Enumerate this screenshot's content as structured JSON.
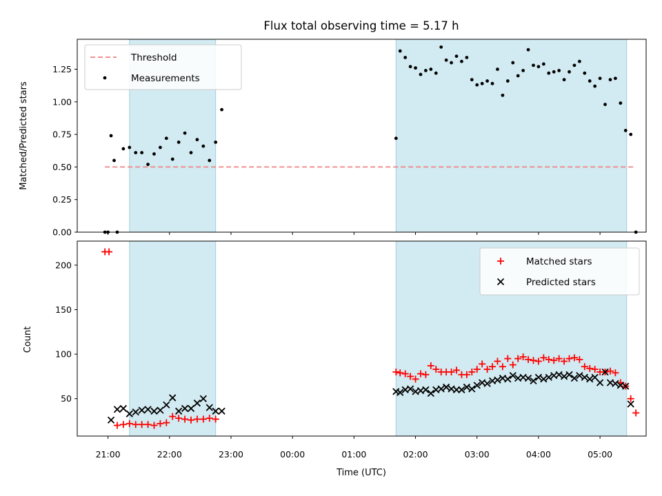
{
  "chart_data": [
    {
      "type": "scatter",
      "panel": "top",
      "title": "Flux total observing time = 5.17 h",
      "xlabel": "",
      "ylabel": "Matched/Predicted stars",
      "ylim": [
        0,
        1.48
      ],
      "xlim": [
        "20:30",
        "05:45"
      ],
      "yticks": [
        0.0,
        0.25,
        0.5,
        0.75,
        1.0,
        1.25
      ],
      "ytick_labels": [
        "0.00",
        "0.25",
        "0.50",
        "0.75",
        "1.00",
        "1.25"
      ],
      "shaded_intervals": [
        [
          "21:21",
          "22:45"
        ],
        [
          "01:41",
          "05:26"
        ]
      ],
      "legend": "top-left",
      "series": [
        {
          "name": "Threshold",
          "style": "dashed-line",
          "color": "#f08080",
          "x": [
            "20:57",
            "05:33"
          ],
          "y": [
            0.5,
            0.5
          ]
        },
        {
          "name": "Measurements",
          "style": "dot",
          "color": "#000000",
          "x": [
            "20:57",
            "21:00",
            "21:03",
            "21:06",
            "21:09",
            "21:15",
            "21:21",
            "21:27",
            "21:33",
            "21:39",
            "21:45",
            "21:51",
            "21:57",
            "22:03",
            "22:09",
            "22:15",
            "22:21",
            "22:27",
            "22:33",
            "22:39",
            "22:45",
            "22:51",
            "01:41",
            "01:45",
            "01:50",
            "01:55",
            "02:00",
            "02:05",
            "02:10",
            "02:15",
            "02:20",
            "02:25",
            "02:30",
            "02:35",
            "02:40",
            "02:45",
            "02:50",
            "02:55",
            "03:00",
            "03:05",
            "03:10",
            "03:15",
            "03:20",
            "03:25",
            "03:30",
            "03:35",
            "03:40",
            "03:45",
            "03:50",
            "03:55",
            "04:00",
            "04:05",
            "04:10",
            "04:15",
            "04:20",
            "04:25",
            "04:30",
            "04:35",
            "04:40",
            "04:45",
            "04:50",
            "04:55",
            "05:00",
            "05:05",
            "05:10",
            "05:15",
            "05:20",
            "05:25",
            "05:30",
            "05:35"
          ],
          "y": [
            0.0,
            0.0,
            0.74,
            0.55,
            0.0,
            0.64,
            0.65,
            0.61,
            0.61,
            0.52,
            0.6,
            0.65,
            0.72,
            0.56,
            0.69,
            0.76,
            0.61,
            0.71,
            0.66,
            0.55,
            0.69,
            0.94,
            0.72,
            1.39,
            1.34,
            1.27,
            1.26,
            1.21,
            1.24,
            1.25,
            1.22,
            1.42,
            1.32,
            1.3,
            1.35,
            1.31,
            1.34,
            1.17,
            1.13,
            1.14,
            1.16,
            1.14,
            1.25,
            1.05,
            1.16,
            1.3,
            1.2,
            1.24,
            1.4,
            1.28,
            1.27,
            1.29,
            1.22,
            1.23,
            1.24,
            1.17,
            1.23,
            1.28,
            1.31,
            1.22,
            1.16,
            1.12,
            1.18,
            0.98,
            1.17,
            1.18,
            0.99,
            0.78,
            0.75,
            0.0
          ]
        }
      ]
    },
    {
      "type": "scatter",
      "panel": "bottom",
      "title": "",
      "xlabel": "Time (UTC)",
      "ylabel": "Count",
      "ylim": [
        8,
        227
      ],
      "xlim": [
        "20:30",
        "05:45"
      ],
      "yticks": [
        50,
        100,
        150,
        200
      ],
      "ytick_labels": [
        "50",
        "100",
        "150",
        "200"
      ],
      "xticks": [
        "21:00",
        "22:00",
        "23:00",
        "00:00",
        "01:00",
        "02:00",
        "03:00",
        "04:00",
        "05:00"
      ],
      "xtick_labels": [
        "21:00",
        "22:00",
        "23:00",
        "00:00",
        "01:00",
        "02:00",
        "03:00",
        "04:00",
        "05:00"
      ],
      "shaded_intervals": [
        [
          "21:21",
          "22:45"
        ],
        [
          "01:41",
          "05:26"
        ]
      ],
      "legend": "top-right",
      "series": [
        {
          "name": "Matched stars",
          "marker": "plus",
          "color": "#ff0000",
          "x": [
            "20:57",
            "21:01",
            "21:09",
            "21:15",
            "21:21",
            "21:27",
            "21:33",
            "21:39",
            "21:45",
            "21:51",
            "21:57",
            "22:03",
            "22:09",
            "22:15",
            "22:21",
            "22:27",
            "22:33",
            "22:39",
            "22:45",
            "01:41",
            "01:45",
            "01:50",
            "01:55",
            "02:00",
            "02:05",
            "02:10",
            "02:15",
            "02:20",
            "02:25",
            "02:30",
            "02:35",
            "02:40",
            "02:45",
            "02:50",
            "02:55",
            "03:00",
            "03:05",
            "03:10",
            "03:15",
            "03:20",
            "03:25",
            "03:30",
            "03:35",
            "03:40",
            "03:45",
            "03:50",
            "03:55",
            "04:00",
            "04:05",
            "04:10",
            "04:15",
            "04:20",
            "04:25",
            "04:30",
            "04:35",
            "04:40",
            "04:45",
            "04:50",
            "04:55",
            "05:00",
            "05:05",
            "05:10",
            "05:15",
            "05:20",
            "05:25",
            "05:30",
            "05:35"
          ],
          "y": [
            215,
            215,
            20,
            21,
            22,
            21,
            21,
            21,
            20,
            22,
            23,
            30,
            28,
            27,
            26,
            27,
            27,
            28,
            27,
            80,
            79,
            78,
            75,
            72,
            78,
            77,
            87,
            83,
            80,
            80,
            80,
            82,
            77,
            77,
            80,
            83,
            89,
            83,
            86,
            92,
            86,
            95,
            88,
            95,
            97,
            94,
            93,
            92,
            96,
            94,
            93,
            95,
            92,
            95,
            96,
            94,
            86,
            84,
            83,
            80,
            80,
            81,
            79,
            68,
            64,
            50,
            34
          ]
        },
        {
          "name": "Predicted stars",
          "marker": "cross",
          "color": "#000000",
          "x": [
            "21:03",
            "21:09",
            "21:15",
            "21:21",
            "21:27",
            "21:33",
            "21:39",
            "21:45",
            "21:51",
            "21:57",
            "22:03",
            "22:09",
            "22:15",
            "22:21",
            "22:27",
            "22:33",
            "22:39",
            "22:45",
            "22:51",
            "01:41",
            "01:45",
            "01:50",
            "01:55",
            "02:00",
            "02:05",
            "02:10",
            "02:15",
            "02:20",
            "02:25",
            "02:30",
            "02:35",
            "02:40",
            "02:45",
            "02:50",
            "02:55",
            "03:00",
            "03:05",
            "03:10",
            "03:15",
            "03:20",
            "03:25",
            "03:30",
            "03:35",
            "03:40",
            "03:45",
            "03:50",
            "03:55",
            "04:00",
            "04:05",
            "04:10",
            "04:15",
            "04:20",
            "04:25",
            "04:30",
            "04:35",
            "04:40",
            "04:45",
            "04:50",
            "04:55",
            "05:00",
            "05:05",
            "05:10",
            "05:15",
            "05:20",
            "05:25",
            "05:30"
          ],
          "y": [
            26,
            38,
            39,
            33,
            35,
            37,
            38,
            36,
            37,
            43,
            51,
            36,
            39,
            39,
            45,
            50,
            40,
            36,
            36,
            58,
            57,
            60,
            61,
            58,
            59,
            60,
            56,
            60,
            61,
            63,
            61,
            60,
            60,
            63,
            61,
            65,
            68,
            67,
            70,
            71,
            73,
            72,
            76,
            73,
            74,
            73,
            70,
            74,
            72,
            74,
            76,
            77,
            75,
            77,
            73,
            76,
            74,
            72,
            74,
            68,
            80,
            68,
            67,
            65,
            64,
            44
          ]
        }
      ]
    }
  ]
}
